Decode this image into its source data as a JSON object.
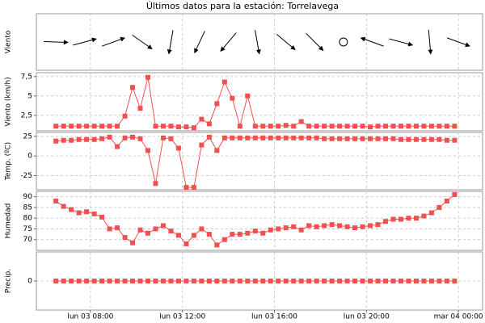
{
  "chart_data": [
    {
      "type": "vector",
      "title": "Últimos datos para la estación: Torrelavega",
      "ylabel": "Viento",
      "x": [
        390,
        465,
        540,
        615,
        690,
        765,
        840,
        915,
        990,
        1065,
        1140,
        1215,
        1290,
        1365,
        1440
      ],
      "values": [
        92,
        75,
        70,
        125,
        190,
        205,
        220,
        170,
        130,
        135,
        null,
        290,
        105,
        175,
        110
      ],
      "xlim": [
        339,
        1503
      ],
      "color": "#000000"
    },
    {
      "type": "line",
      "ylabel": "Viento (km/h)",
      "x": [
        390,
        410,
        430,
        450,
        470,
        490,
        510,
        530,
        550,
        570,
        590,
        610,
        630,
        650,
        670,
        690,
        710,
        730,
        750,
        770,
        790,
        810,
        830,
        850,
        870,
        890,
        910,
        930,
        950,
        970,
        990,
        1010,
        1030,
        1050,
        1070,
        1090,
        1110,
        1130,
        1150,
        1170,
        1190,
        1210,
        1230,
        1250,
        1270,
        1290,
        1310,
        1330,
        1350,
        1370,
        1390,
        1410,
        1430
      ],
      "values": [
        1.1,
        1.1,
        1.1,
        1.1,
        1.1,
        1.1,
        1.1,
        1.1,
        1.1,
        2.4,
        6.1,
        3.4,
        7.4,
        1.1,
        1.1,
        1.1,
        1.0,
        1.0,
        0.9,
        2.0,
        1.4,
        4.0,
        6.8,
        4.7,
        1.1,
        5.0,
        1.1,
        1.1,
        1.1,
        1.1,
        1.2,
        1.1,
        1.7,
        1.1,
        1.1,
        1.1,
        1.1,
        1.1,
        1.1,
        1.1,
        1.1,
        1.0,
        1.1,
        1.1,
        1.1,
        1.1,
        1.1,
        1.1,
        1.1,
        1.1,
        1.1,
        1.1,
        1.1
      ],
      "xlim": [
        339,
        1503
      ],
      "ylim": [
        0.5,
        8.0
      ],
      "yticks": [
        {
          "value": 2.5,
          "label": "2,5"
        },
        5,
        {
          "value": 7.5,
          "label": "7,5"
        }
      ],
      "color": "#f05050",
      "grid": true
    },
    {
      "type": "line",
      "ylabel": "Temp. (ºC)",
      "x": [
        390,
        410,
        430,
        450,
        470,
        490,
        510,
        530,
        550,
        570,
        590,
        610,
        630,
        650,
        670,
        690,
        710,
        730,
        750,
        770,
        790,
        810,
        830,
        850,
        870,
        890,
        910,
        930,
        950,
        970,
        990,
        1010,
        1030,
        1050,
        1070,
        1090,
        1110,
        1130,
        1150,
        1170,
        1190,
        1210,
        1230,
        1250,
        1270,
        1290,
        1310,
        1330,
        1350,
        1370,
        1390,
        1410,
        1430
      ],
      "values": [
        19,
        20,
        20,
        21,
        21,
        21,
        22,
        24,
        12,
        23,
        24,
        22,
        7,
        -35,
        23,
        22,
        10,
        -40,
        -40,
        14,
        24,
        7,
        23,
        23,
        23,
        23,
        23,
        23,
        23,
        23,
        23,
        23,
        23,
        23,
        23,
        22,
        22,
        22,
        22,
        22,
        22,
        22,
        22,
        22,
        22,
        21,
        21,
        21,
        21,
        21,
        21,
        20,
        20
      ],
      "xlim": [
        339,
        1503
      ],
      "ylim": [
        -43,
        30
      ],
      "yticks": [
        -25,
        0,
        25
      ],
      "color": "#f05050",
      "grid": true
    },
    {
      "type": "line",
      "ylabel": "Humedad",
      "x": [
        390,
        410,
        430,
        450,
        470,
        490,
        510,
        530,
        550,
        570,
        590,
        610,
        630,
        650,
        670,
        690,
        710,
        730,
        750,
        770,
        790,
        810,
        830,
        850,
        870,
        890,
        910,
        930,
        950,
        970,
        990,
        1010,
        1030,
        1050,
        1070,
        1090,
        1110,
        1130,
        1150,
        1170,
        1190,
        1210,
        1230,
        1250,
        1270,
        1290,
        1310,
        1330,
        1350,
        1370,
        1390,
        1410,
        1430
      ],
      "values": [
        88,
        85.5,
        84,
        82.5,
        83,
        82,
        80.5,
        75,
        75.5,
        71,
        68.5,
        74.5,
        73,
        75,
        76.5,
        74,
        72,
        68,
        72,
        75,
        72.5,
        67.5,
        70,
        72.5,
        72.5,
        73,
        74,
        73,
        74.5,
        75,
        75.5,
        76,
        74.5,
        76.5,
        76,
        76.5,
        77,
        76.5,
        76,
        75.5,
        76,
        76.5,
        77,
        78.5,
        79.5,
        79.5,
        80,
        80,
        81,
        82.5,
        85,
        88,
        91
      ],
      "xlim": [
        339,
        1503
      ],
      "ylim": [
        65,
        92.5
      ],
      "yticks": [
        70,
        75,
        80,
        85,
        90
      ],
      "color": "#f05050",
      "grid": true
    },
    {
      "type": "line",
      "ylabel": "Precip.",
      "x": [
        390,
        410,
        430,
        450,
        470,
        490,
        510,
        530,
        550,
        570,
        590,
        610,
        630,
        650,
        670,
        690,
        710,
        730,
        750,
        770,
        790,
        810,
        830,
        850,
        870,
        890,
        910,
        930,
        950,
        970,
        990,
        1010,
        1030,
        1050,
        1070,
        1090,
        1110,
        1130,
        1150,
        1170,
        1190,
        1210,
        1230,
        1250,
        1270,
        1290,
        1310,
        1330,
        1350,
        1370,
        1390,
        1410,
        1430
      ],
      "values": [
        0,
        0,
        0,
        0,
        0,
        0,
        0,
        0,
        0,
        0,
        0,
        0,
        0,
        0,
        0,
        0,
        0,
        0,
        0,
        0,
        0,
        0,
        0,
        0,
        0,
        0,
        0,
        0,
        0,
        0,
        0,
        0,
        0,
        0,
        0,
        0,
        0,
        0,
        0,
        0,
        0,
        0,
        0,
        0,
        0,
        0,
        0,
        0,
        0,
        0,
        0,
        0,
        0
      ],
      "xlim": [
        339,
        1503
      ],
      "ylim": [
        -1,
        1
      ],
      "yticks": [
        0
      ],
      "xticks": [
        {
          "value": 480,
          "label": "lun 03 08:00"
        },
        {
          "value": 720,
          "label": "lun 03 12:00"
        },
        {
          "value": 960,
          "label": "lun 03 16:00"
        },
        {
          "value": 1200,
          "label": "lun 03 20:00"
        },
        {
          "value": 1440,
          "label": "mar 04 00:00"
        }
      ],
      "color": "#f05050",
      "grid": true
    }
  ]
}
